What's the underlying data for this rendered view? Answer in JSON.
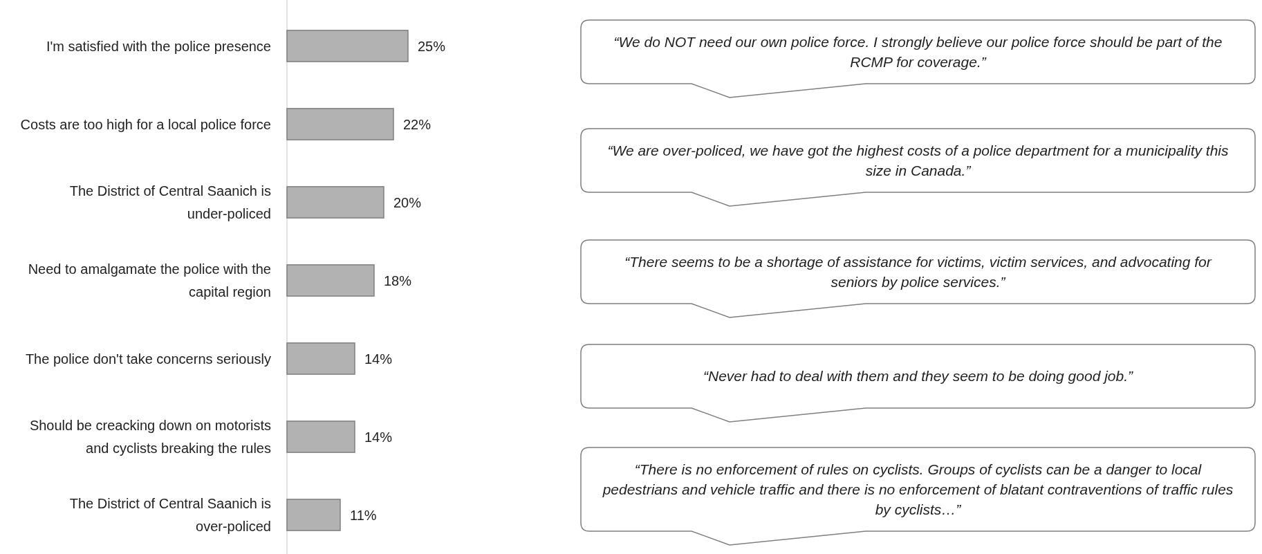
{
  "chart_data": {
    "type": "bar",
    "orientation": "horizontal",
    "categories": [
      "I'm satisfied with the police presence",
      "Costs are too high for a local police force",
      "The District of Central Saanich is under-policed",
      "Need to amalgamate the police with the capital region",
      "The police don't take concerns seriously",
      "Should be creacking down on motorists and cyclists breaking the rules",
      "The District of Central Saanich is over-policed"
    ],
    "values": [
      25,
      22,
      20,
      18,
      14,
      14,
      11
    ],
    "value_labels": [
      "25%",
      "22%",
      "20%",
      "18%",
      "14%",
      "14%",
      "11%"
    ],
    "color": "#b2b2b2",
    "annotations": [
      "“We do NOT need our own police force. I strongly believe our police force should be part of the RCMP for coverage.”",
      "“We are over-policed, we have got the highest costs of a police department for a municipality this size in Canada.”",
      "“There seems to be a shortage of assistance for victims, victim services, and advocating for seniors by police services.”",
      "“Never had to deal with them and they seem to be doing good job.”",
      "“There is no enforcement of rules on cyclists. Groups of cyclists can be a danger to local pedestrians and vehicle traffic and there is no enforcement of blatant contraventions of traffic rules by cyclists…”"
    ]
  }
}
